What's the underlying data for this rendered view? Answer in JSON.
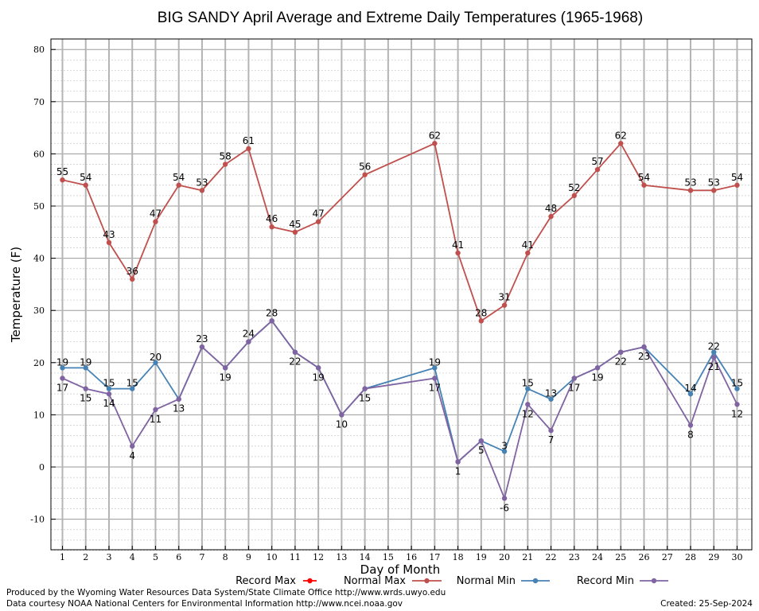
{
  "chart_data": {
    "type": "line",
    "title": "BIG SANDY April Average and Extreme Daily Temperatures (1965-1968)",
    "xlabel": "Day of Month",
    "ylabel": "Temperature (F)",
    "xlim": [
      0.5,
      30.5
    ],
    "ylim": [
      -16,
      82
    ],
    "yticks": [
      -10,
      0,
      10,
      20,
      30,
      40,
      50,
      60,
      70,
      80
    ],
    "xticks": [
      1,
      2,
      3,
      4,
      5,
      6,
      7,
      8,
      9,
      10,
      11,
      12,
      13,
      14,
      15,
      16,
      17,
      18,
      19,
      20,
      21,
      22,
      23,
      24,
      25,
      26,
      27,
      28,
      29,
      30
    ],
    "grid": true,
    "legend_position": "bottom",
    "series": [
      {
        "name": "Record Max",
        "color": "#ff0000",
        "x": [],
        "values": []
      },
      {
        "name": "Normal Max",
        "color": "#c0504d",
        "x": [
          1,
          2,
          3,
          4,
          5,
          6,
          7,
          8,
          9,
          10,
          11,
          12,
          14,
          17,
          18,
          19,
          20,
          21,
          22,
          23,
          24,
          25,
          26,
          28,
          29,
          30
        ],
        "values": [
          55,
          54,
          43,
          36,
          47,
          54,
          53,
          58,
          61,
          46,
          45,
          47,
          56,
          62,
          41,
          28,
          31,
          41,
          48,
          52,
          57,
          62,
          54,
          53,
          53,
          54
        ],
        "labels": [
          "55",
          "54",
          "43",
          "36",
          "47",
          "54",
          "53",
          "58",
          "61",
          "46",
          "45",
          "47",
          "56",
          "62",
          "41",
          "28",
          "31",
          "41",
          "48",
          "52",
          "57",
          "62",
          "54",
          "53",
          "53",
          "54"
        ]
      },
      {
        "name": "Normal Min",
        "color": "#4682b4",
        "x": [
          1,
          2,
          3,
          4,
          5,
          6,
          7,
          8,
          9,
          10,
          11,
          12,
          13,
          14,
          17,
          18,
          19,
          20,
          21,
          22,
          23,
          24,
          25,
          26,
          28,
          29,
          30
        ],
        "values": [
          19,
          19,
          15,
          15,
          20,
          13,
          23,
          19,
          24,
          28,
          22,
          19,
          10,
          15,
          19,
          1,
          5,
          3,
          15,
          13,
          17,
          19,
          22,
          23,
          14,
          22,
          15
        ],
        "labels": [
          "19",
          "19",
          "15",
          "15",
          "20",
          "13",
          "23",
          "19",
          "24",
          "28",
          "22",
          "19",
          "10",
          "15",
          "19",
          "1",
          "5",
          "3",
          "15",
          "13",
          "17",
          "19",
          "22",
          "23",
          "14",
          "22",
          "15"
        ]
      },
      {
        "name": "Record Min",
        "color": "#8064a2",
        "x": [
          1,
          2,
          3,
          4,
          5,
          6,
          7,
          8,
          9,
          10,
          11,
          12,
          13,
          14,
          17,
          18,
          19,
          20,
          21,
          22,
          23,
          24,
          25,
          26,
          28,
          29,
          30
        ],
        "values": [
          17,
          15,
          14,
          4,
          11,
          13,
          23,
          19,
          24,
          28,
          22,
          19,
          10,
          15,
          17,
          1,
          5,
          -6,
          12,
          7,
          17,
          19,
          22,
          23,
          8,
          21,
          12
        ],
        "labels": [
          "17",
          "15",
          "14",
          "4",
          "11",
          "13",
          "23",
          "19",
          "24",
          "28",
          "22",
          "19",
          "10",
          "15",
          "17",
          "1",
          "5",
          "-6",
          "12",
          "7",
          "17",
          "19",
          "22",
          "23",
          "8",
          "21",
          "12"
        ]
      }
    ],
    "legend": [
      "Record Max",
      "Normal Max",
      "Normal Min",
      "Record Min"
    ]
  },
  "footer": {
    "produced_by": "Produced by the Wyoming Water Resources Data System/State Climate Office http://www.wrds.uwyo.edu",
    "courtesy": "Data courtesy NOAA National Centers for Environmental Information http://www.ncei.noaa.gov",
    "created": "Created:  25-Sep-2024"
  }
}
